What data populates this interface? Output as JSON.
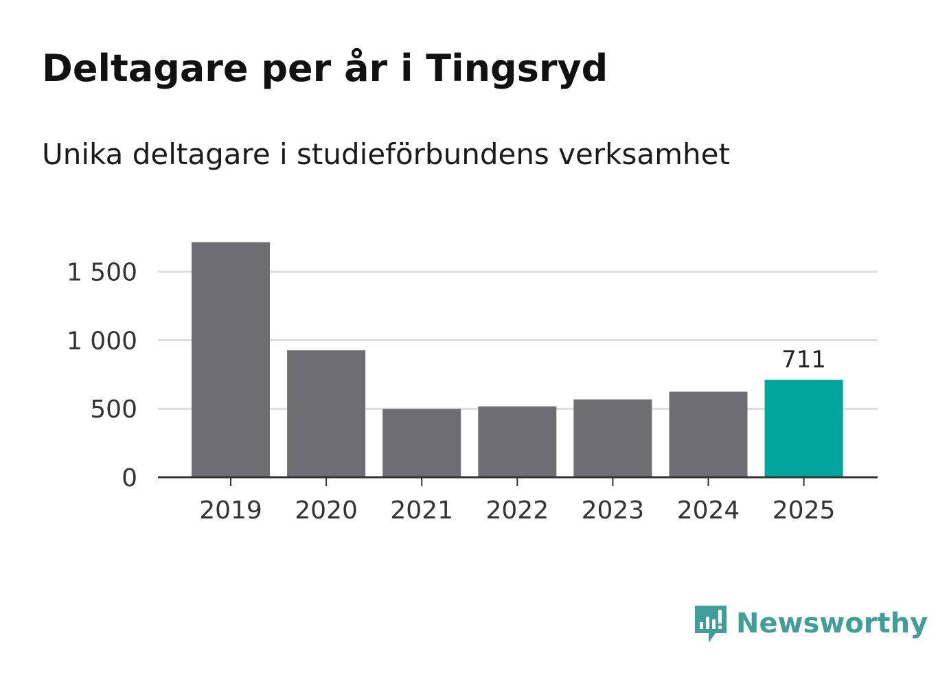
{
  "header": {
    "title": "Deltagare per år i Tingsryd",
    "subtitle": "Unika deltagare i studieförbundens verksamhet"
  },
  "chart_data": {
    "type": "bar",
    "title": "Deltagare per år i Tingsryd",
    "subtitle": "Unika deltagare i studieförbundens verksamhet",
    "categories": [
      "2019",
      "2020",
      "2021",
      "2022",
      "2023",
      "2024",
      "2025"
    ],
    "values": [
      1715,
      926,
      498,
      517,
      568,
      624,
      711
    ],
    "ylim": [
      0,
      1800
    ],
    "yticks": [
      0,
      500,
      1000,
      1500
    ],
    "ytick_labels": [
      "0",
      "500",
      "1 000",
      "1 500"
    ],
    "highlight_index": 6,
    "data_labels": [
      {
        "index": 6,
        "text": "711"
      }
    ],
    "grid": true,
    "xlabel": "",
    "ylabel": ""
  },
  "colors": {
    "bar": "#6e6d72",
    "highlight": "#00a59b",
    "grid": "#dddddd",
    "axis": "#333333",
    "tick_text": "#333333"
  },
  "brand": {
    "name": "Newsworthy",
    "icon": "newsworthy-logo-icon",
    "color": "#3f9e98"
  }
}
